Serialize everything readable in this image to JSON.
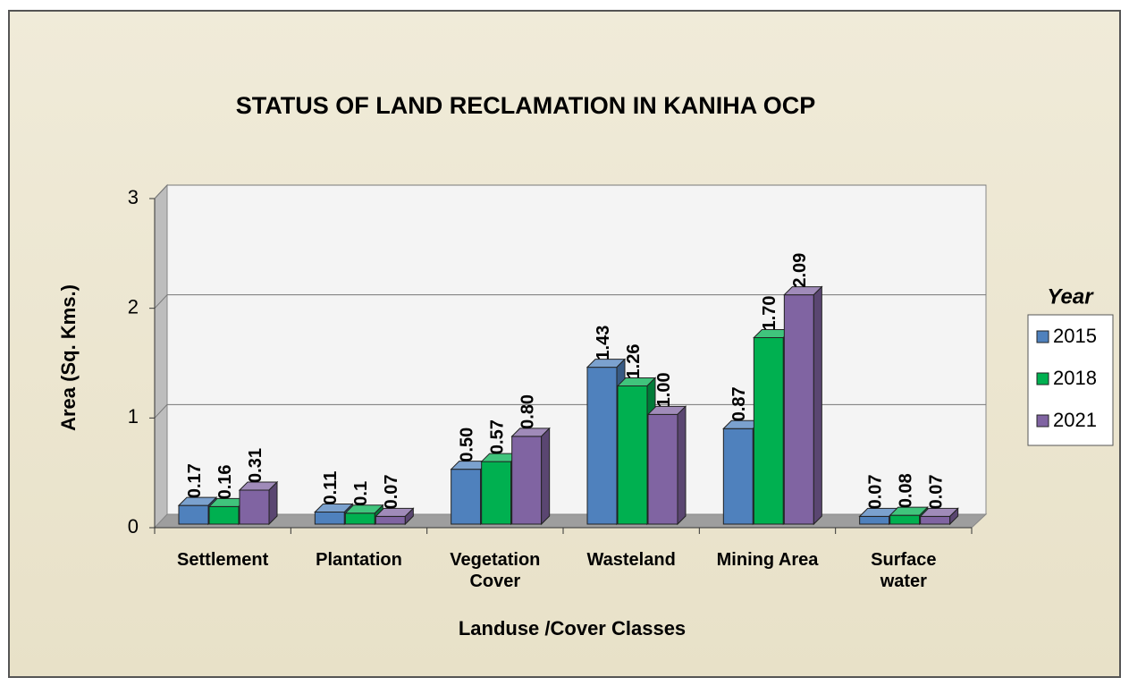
{
  "chart_data": {
    "type": "bar3d",
    "title": "STATUS OF LAND RECLAMATION  IN KANIHA OCP",
    "x_label": "Landuse /Cover Classes",
    "y_label": "Area (Sq. Kms.)",
    "legend_title": "Year",
    "categories": [
      "Settlement",
      "Plantation",
      "Vegetation Cover",
      "Wasteland",
      "Mining Area",
      "Surface water"
    ],
    "series": [
      {
        "name": "2015",
        "color": "#4f81bd",
        "values": [
          0.17,
          0.11,
          0.5,
          1.43,
          0.87,
          0.07
        ],
        "value_labels": [
          "0.17",
          "0.11",
          "0.50",
          "1.43",
          "0.87",
          "0.07"
        ]
      },
      {
        "name": "2018",
        "color": "#00b050",
        "values": [
          0.16,
          0.1,
          0.57,
          1.26,
          1.7,
          0.08
        ],
        "value_labels": [
          "0.16",
          "0.1",
          "0.57",
          "1.26",
          "1.70",
          "0.08"
        ]
      },
      {
        "name": "2021",
        "color": "#8064a2",
        "values": [
          0.31,
          0.07,
          0.8,
          1.0,
          2.09,
          0.07
        ],
        "value_labels": [
          "0.31",
          "0.07",
          "0.80",
          "1.00",
          "2.09",
          "0.07"
        ]
      }
    ],
    "ylim": [
      0,
      3
    ],
    "yticks": [
      0,
      1,
      2,
      3
    ],
    "grid": true,
    "legend": "right"
  }
}
